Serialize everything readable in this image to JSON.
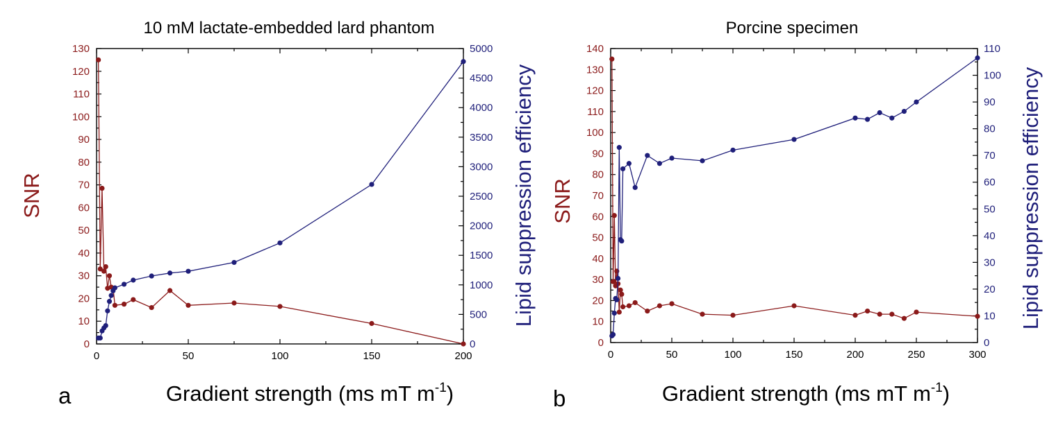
{
  "colors": {
    "snr": "#8b1a1a",
    "lipid": "#1f1f7a",
    "axis": "#000000"
  },
  "chart_data": [
    {
      "type": "line",
      "panel": "a",
      "title": "10 mM lactate-embedded lard phantom",
      "xlabel": "Gradient strength (ms mT m",
      "xlabel_sup": "-1",
      "xlabel_end": ")",
      "ylabel_left": "SNR",
      "ylabel_right": "Lipid suppression efficiency",
      "xlim": [
        0,
        200
      ],
      "ylim_left": [
        0,
        130
      ],
      "ylim_right": [
        0,
        5000
      ],
      "xticks": [
        0,
        50,
        100,
        150,
        200
      ],
      "xminor": 25,
      "yticks_left": [
        0,
        10,
        20,
        30,
        40,
        50,
        60,
        70,
        80,
        90,
        100,
        110,
        120,
        130
      ],
      "yminor_left": 5,
      "yticks_right": [
        0,
        500,
        1000,
        1500,
        2000,
        2500,
        3000,
        3500,
        4000,
        4500,
        5000
      ],
      "yminor_right": 250,
      "series": [
        {
          "name": "SNR",
          "axis": "left",
          "color": "#8b1a1a",
          "x": [
            1,
            2,
            3,
            4,
            5,
            6,
            7,
            8,
            9,
            10,
            15,
            20,
            30,
            40,
            50,
            75,
            100,
            150,
            200
          ],
          "y": [
            125,
            33,
            68.5,
            32,
            34,
            24.5,
            30,
            25,
            24.5,
            17,
            17.5,
            19.5,
            16,
            23.5,
            17,
            18,
            16.5,
            9,
            0
          ]
        },
        {
          "name": "Lipid suppression efficiency",
          "axis": "right",
          "color": "#1f1f7a",
          "x": [
            1,
            2,
            3,
            4,
            5,
            6,
            7,
            8,
            9,
            10,
            15,
            20,
            30,
            40,
            50,
            75,
            100,
            150,
            200
          ],
          "y": [
            100,
            100,
            220,
            270,
            310,
            560,
            720,
            820,
            900,
            950,
            1010,
            1080,
            1150,
            1200,
            1230,
            1380,
            1710,
            2700,
            4780
          ]
        }
      ]
    },
    {
      "type": "line",
      "panel": "b",
      "title": "Porcine specimen",
      "xlabel": "Gradient strength (ms mT m",
      "xlabel_sup": "-1",
      "xlabel_end": ")",
      "ylabel_left": "SNR",
      "ylabel_right": "Lipid suppression efficiency",
      "xlim": [
        0,
        300
      ],
      "ylim_left": [
        0,
        140
      ],
      "ylim_right": [
        0,
        110
      ],
      "xticks": [
        0,
        50,
        100,
        150,
        200,
        250,
        300
      ],
      "xminor": 25,
      "yticks_left": [
        0,
        10,
        20,
        30,
        40,
        50,
        60,
        70,
        80,
        90,
        100,
        110,
        120,
        130,
        140
      ],
      "yminor_left": 5,
      "yticks_right": [
        0,
        10,
        20,
        30,
        40,
        50,
        60,
        70,
        80,
        90,
        100,
        110
      ],
      "yminor_right": 5,
      "series": [
        {
          "name": "SNR",
          "axis": "left",
          "color": "#8b1a1a",
          "x": [
            1,
            2,
            3,
            4,
            5,
            6,
            7,
            8,
            9,
            10,
            15,
            20,
            30,
            40,
            50,
            75,
            100,
            150,
            200,
            210,
            220,
            230,
            240,
            250,
            300
          ],
          "y": [
            135,
            29,
            60.5,
            27,
            34,
            28,
            14.5,
            25,
            23,
            17,
            17.5,
            19,
            15,
            17.5,
            18.5,
            13.5,
            13,
            17.5,
            13,
            15,
            13.5,
            13.5,
            11.5,
            14.5,
            12.5
          ]
        },
        {
          "name": "Lipid suppression efficiency",
          "axis": "right",
          "color": "#1f1f7a",
          "x": [
            1,
            2,
            3,
            4,
            5,
            6,
            7,
            8,
            9,
            10,
            15,
            20,
            30,
            40,
            50,
            75,
            100,
            150,
            200,
            210,
            220,
            230,
            240,
            250,
            300
          ],
          "y": [
            2.5,
            3,
            11,
            16.5,
            16,
            24,
            73,
            38.5,
            38,
            65,
            67,
            58,
            70,
            67,
            69,
            68,
            72,
            76,
            84,
            83.5,
            86,
            84,
            86.5,
            90,
            106.5
          ]
        }
      ]
    }
  ]
}
